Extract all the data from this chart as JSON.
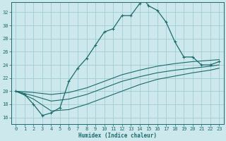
{
  "xlabel": "Humidex (Indice chaleur)",
  "bg_color": "#cde8ec",
  "grid_color": "#9fcdd4",
  "line_color": "#1a6b6b",
  "xlim": [
    -0.5,
    23.5
  ],
  "ylim": [
    15.0,
    33.5
  ],
  "yticks": [
    16,
    18,
    20,
    22,
    24,
    26,
    28,
    30,
    32
  ],
  "xticks": [
    0,
    1,
    2,
    3,
    4,
    5,
    6,
    7,
    8,
    9,
    10,
    11,
    12,
    13,
    14,
    15,
    16,
    17,
    18,
    19,
    20,
    21,
    22,
    23
  ],
  "curve1_x": [
    0,
    1,
    2,
    3,
    4,
    5,
    6,
    7,
    8,
    9,
    10,
    11,
    12,
    13,
    14,
    14.5,
    15,
    16,
    17,
    18,
    19,
    20,
    21,
    22,
    23
  ],
  "curve1_y": [
    20,
    19.5,
    18.0,
    16.3,
    16.7,
    17.5,
    21.5,
    23.5,
    25.0,
    27.0,
    29.0,
    29.5,
    31.5,
    31.5,
    33.3,
    34.0,
    33.0,
    32.3,
    30.5,
    27.5,
    25.2,
    25.2,
    24.0,
    24.0,
    24.5
  ],
  "curve2_x": [
    0,
    2,
    4,
    6,
    8,
    10,
    12,
    14,
    16,
    18,
    20,
    22,
    23
  ],
  "curve2_y": [
    20.0,
    19.8,
    19.5,
    19.8,
    20.5,
    21.5,
    22.5,
    23.2,
    23.8,
    24.2,
    24.5,
    24.7,
    24.8
  ],
  "curve3_x": [
    0,
    2,
    4,
    6,
    8,
    10,
    12,
    14,
    16,
    18,
    20,
    22,
    23
  ],
  "curve3_y": [
    20.0,
    19.3,
    18.5,
    18.8,
    19.5,
    20.5,
    21.5,
    22.2,
    22.8,
    23.2,
    23.5,
    23.8,
    24.0
  ],
  "curve4_x": [
    0,
    2,
    4,
    6,
    8,
    10,
    12,
    14,
    16,
    18,
    20,
    22,
    23
  ],
  "curve4_y": [
    20.0,
    18.8,
    17.0,
    17.2,
    18.0,
    19.0,
    20.0,
    21.0,
    21.8,
    22.3,
    22.8,
    23.2,
    23.5
  ]
}
